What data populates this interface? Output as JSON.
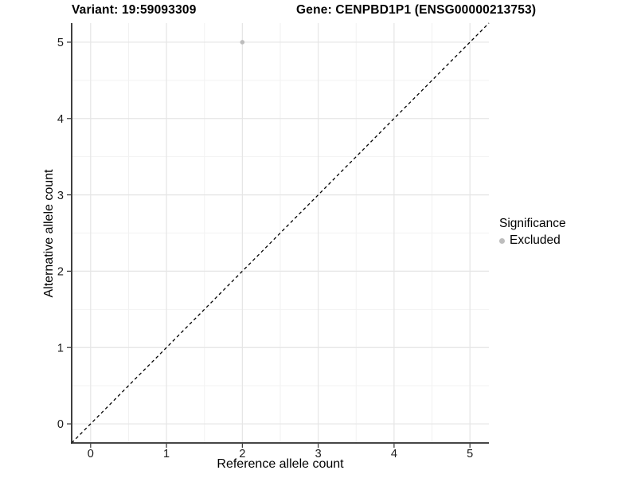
{
  "title": {
    "variant": "Variant: 19:59093309",
    "gene": "Gene: CENPBD1P1 (ENSG00000213753)"
  },
  "chart_data": {
    "type": "scatter",
    "title": "Variant: 19:59093309   Gene: CENPBD1P1 (ENSG00000213753)",
    "xlabel": "Reference allele count",
    "ylabel": "Alternative allele count",
    "xlim": [
      -0.25,
      5.25
    ],
    "ylim": [
      -0.25,
      5.25
    ],
    "x_ticks": [
      0,
      1,
      2,
      3,
      4,
      5
    ],
    "y_ticks": [
      0,
      1,
      2,
      3,
      4,
      5
    ],
    "grid": "on",
    "points": [
      {
        "x": 2,
        "y": 5,
        "series": "Excluded"
      }
    ],
    "reference_line": {
      "type": "abline",
      "slope": 1,
      "intercept": 0,
      "linestyle": "dashed",
      "color": "#000000"
    },
    "legend": {
      "title": "Significance",
      "position": "right",
      "items": [
        {
          "label": "Excluded",
          "color": "#bdbdbd",
          "marker": "circle"
        }
      ]
    },
    "colors": {
      "background": "#ffffff",
      "grid_major": "#e5e5e5",
      "grid_minor": "#f2f2f2",
      "axis_line": "#2b2b2b",
      "tick_mark": "#333333",
      "tick_label": "#1a1a1a",
      "point": "#bdbdbd"
    }
  }
}
